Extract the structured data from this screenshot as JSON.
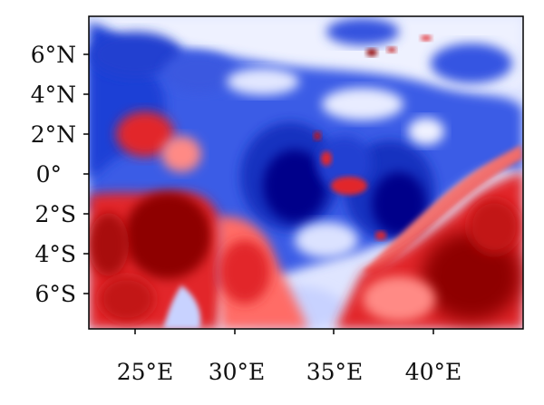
{
  "map": {
    "type": "heatmap",
    "colormap": "seismic (blue-white-red)",
    "colors": {
      "deep_blue": "#00008a",
      "blue": "#1f3fd6",
      "light_blue": "#c8d2ff",
      "white": "#f4f6ff",
      "light_red": "#ffb5b0",
      "red": "#e2282a",
      "dark_red": "#8e0000"
    },
    "x_axis": {
      "ticks": [
        "25°E",
        "30°E",
        "35°E",
        "40°E"
      ],
      "tick_values": [
        25,
        30,
        35,
        40
      ],
      "range": [
        22.7,
        44.6
      ]
    },
    "y_axis": {
      "ticks": [
        "6°N",
        "4°N",
        "2°N",
        "0°",
        "2°S",
        "4°S",
        "6°S"
      ],
      "tick_values": [
        6,
        4,
        2,
        0,
        -2,
        -4,
        -6
      ],
      "range": [
        -7.6,
        7.7
      ]
    },
    "grid": false,
    "legend": "none"
  }
}
